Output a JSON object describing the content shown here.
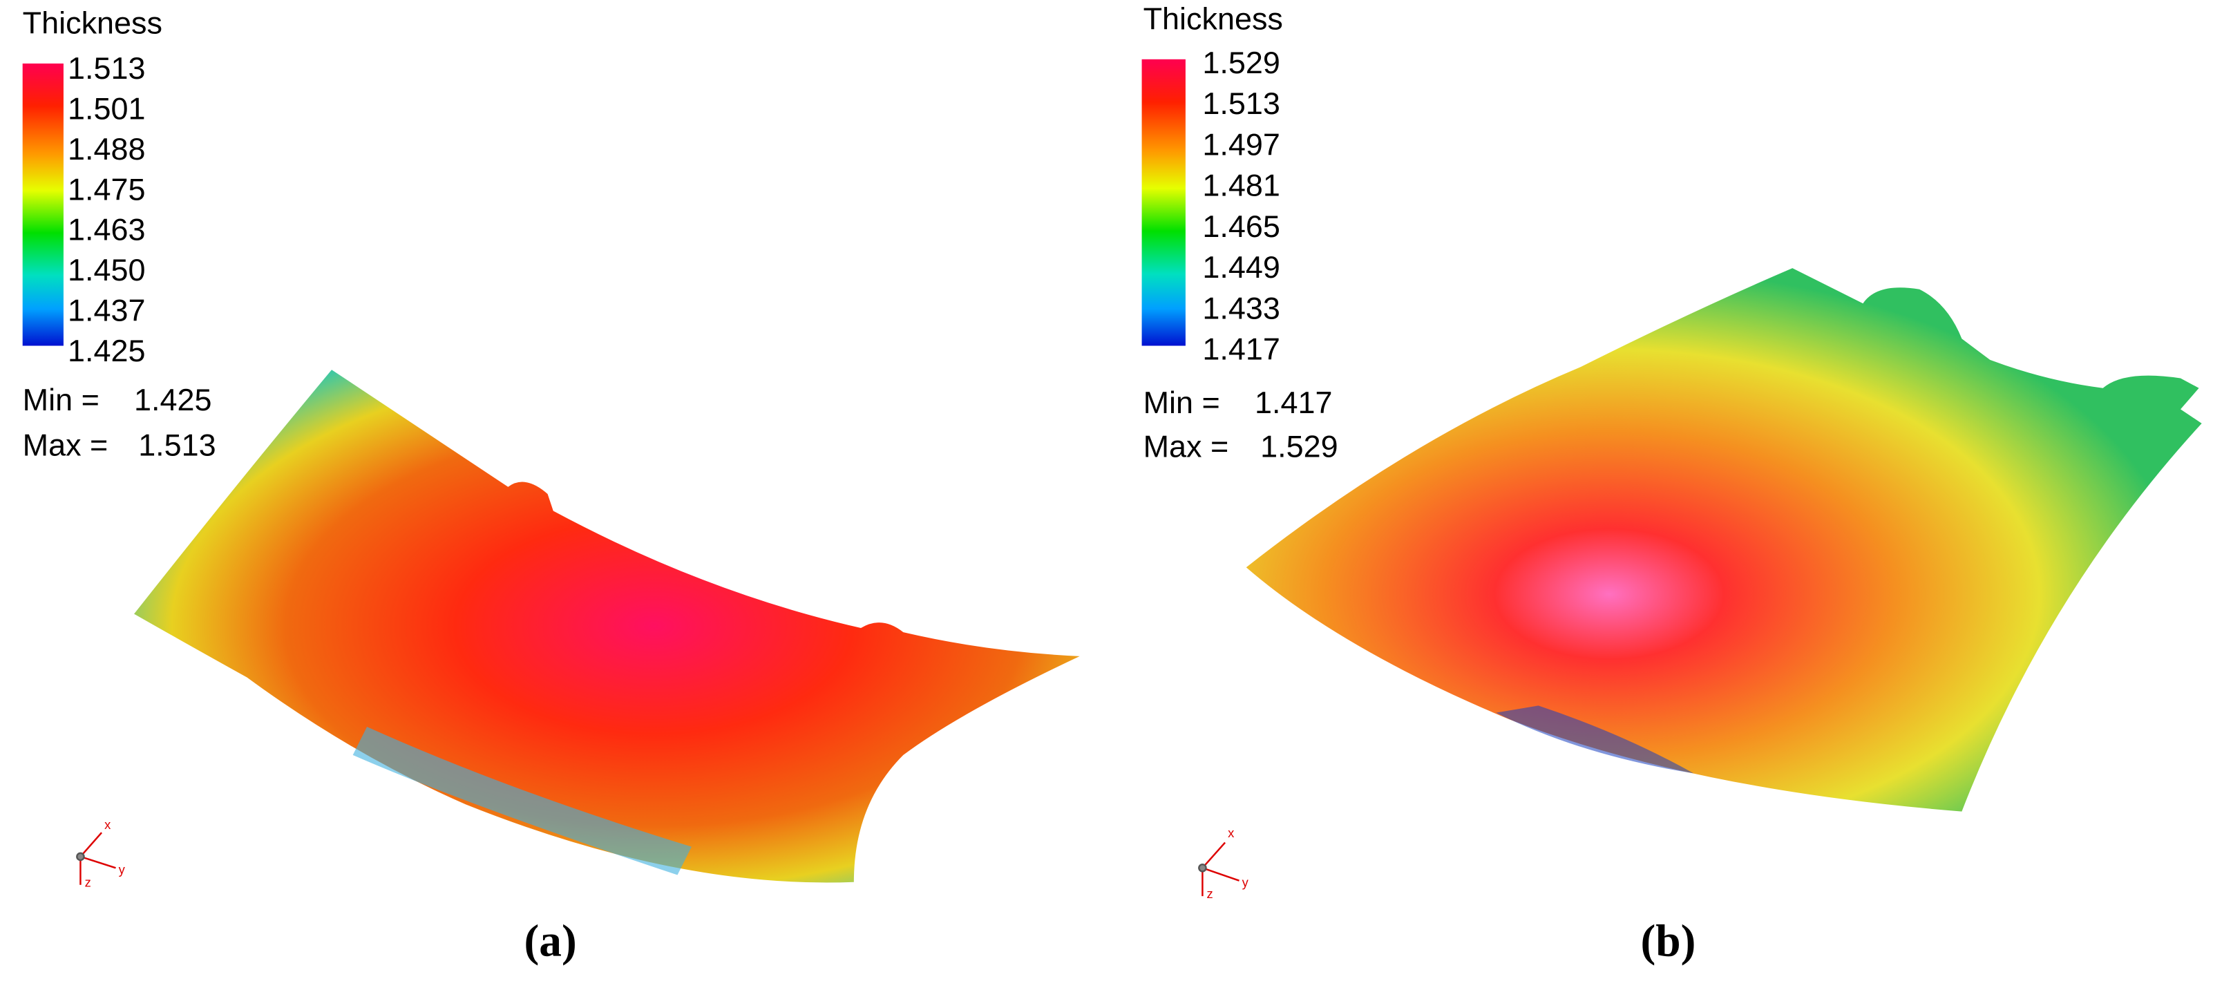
{
  "panels": [
    {
      "legend": {
        "title": "Thickness",
        "labels": [
          "1.513",
          "1.501",
          "1.488",
          "1.475",
          "1.463",
          "1.450",
          "1.437",
          "1.425"
        ]
      },
      "min_label": "Min =",
      "min": "1.425",
      "max_label": "Max =",
      "max": "1.513",
      "axes": [
        "x",
        "y",
        "z"
      ],
      "caption": "(a)"
    },
    {
      "legend": {
        "title": "Thickness",
        "labels": [
          "1.529",
          "1.513",
          "1.497",
          "1.481",
          "1.465",
          "1.449",
          "1.433",
          "1.417"
        ]
      },
      "min_label": "Min =",
      "min": "1.417",
      "max_label": "Max =",
      "max": "1.529",
      "axes": [
        "x",
        "y",
        "z"
      ],
      "caption": "(b)"
    }
  ]
}
